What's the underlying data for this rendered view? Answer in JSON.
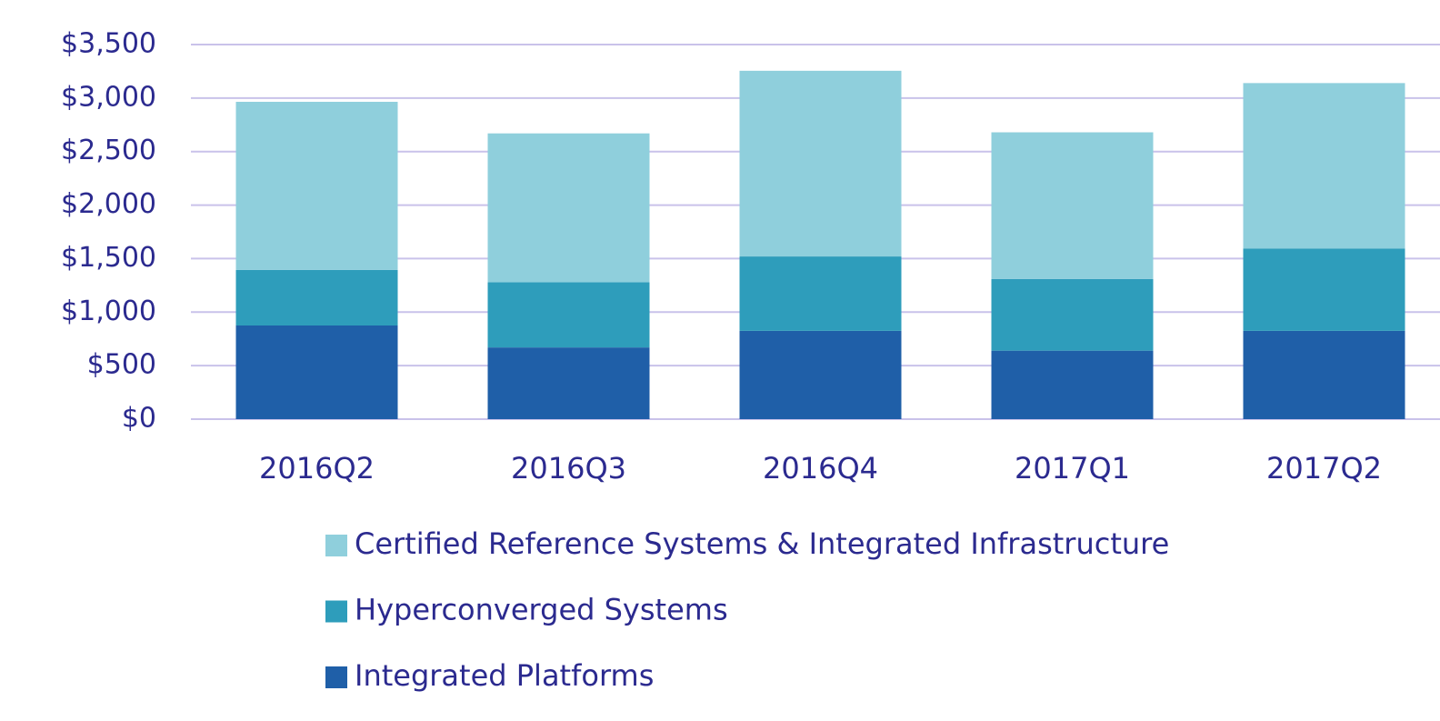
{
  "chart_data": {
    "type": "stacked_bar",
    "categories": [
      "2016Q2",
      "2016Q3",
      "2016Q4",
      "2017Q1",
      "2017Q2"
    ],
    "series": [
      {
        "name": "Integrated Platforms",
        "color": "#1f5fa8",
        "values": [
          875,
          670,
          825,
          640,
          825
        ]
      },
      {
        "name": "Hyperconverged Systems",
        "color": "#2e9dbb",
        "values": [
          520,
          610,
          695,
          670,
          770
        ]
      },
      {
        "name": "Certified Reference Systems & Integrated Infrastructure",
        "color": "#8fcfdc",
        "values": [
          1570,
          1390,
          1735,
          1370,
          1545
        ]
      }
    ],
    "ylim": [
      0,
      3500
    ],
    "yticks": [
      {
        "value": 0,
        "label": "$0"
      },
      {
        "value": 500,
        "label": "$500"
      },
      {
        "value": 1000,
        "label": "$1,000"
      },
      {
        "value": 1500,
        "label": "$1,500"
      },
      {
        "value": 2000,
        "label": "$2,000"
      },
      {
        "value": 2500,
        "label": "$2,500"
      },
      {
        "value": 3000,
        "label": "$3,000"
      },
      {
        "value": 3500,
        "label": "$3,500"
      }
    ],
    "grid": true
  }
}
